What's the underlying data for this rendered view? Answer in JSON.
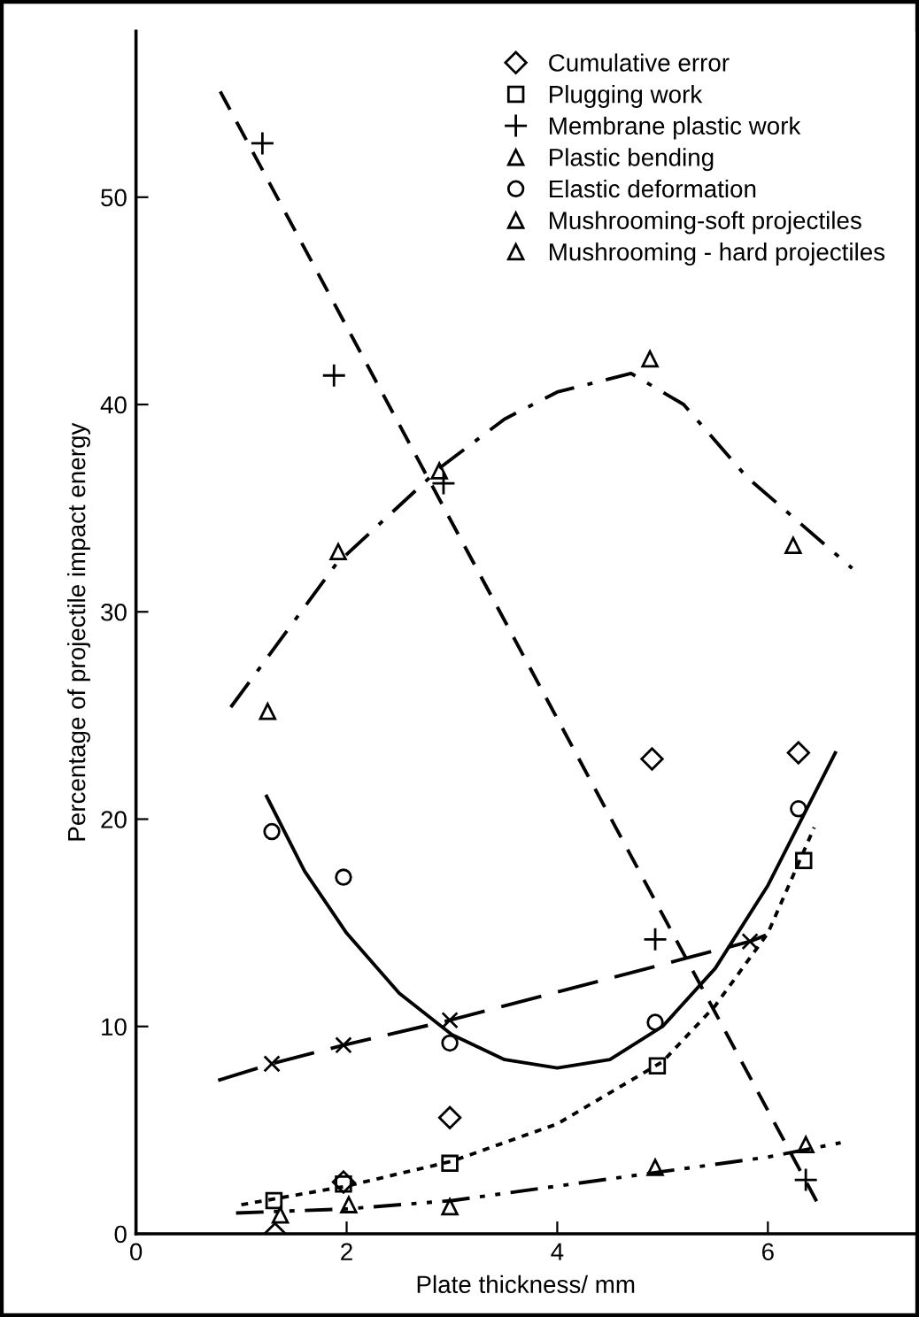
{
  "chart_data": {
    "type": "scatter",
    "xlabel": "Plate thickness/ mm",
    "ylabel": "Percentage of projectile impact energy",
    "xlim": [
      0,
      7.4
    ],
    "ylim": [
      0,
      58
    ],
    "xticks": [
      0,
      2,
      4,
      6
    ],
    "yticks": [
      0,
      10,
      20,
      30,
      40,
      50
    ],
    "grid": false,
    "legend": "top right",
    "series": [
      {
        "name": "Cumulative error",
        "marker": "diamond",
        "color": "#000000",
        "x": [
          1.32,
          1.97,
          2.98,
          4.9,
          6.29
        ],
        "values": [
          0.0,
          2.5,
          5.6,
          22.9,
          23.2
        ]
      },
      {
        "name": "Plugging work",
        "marker": "square",
        "color": "#000000",
        "x": [
          1.31,
          1.97,
          2.98,
          4.95,
          6.34
        ],
        "values": [
          1.6,
          2.4,
          3.4,
          8.1,
          18.0
        ]
      },
      {
        "name": "Membrane plastic work",
        "marker": "cross",
        "color": "#000000",
        "x": [
          1.2,
          1.88,
          2.92,
          4.93,
          6.36
        ],
        "values": [
          52.6,
          41.4,
          36.2,
          14.2,
          2.6
        ]
      },
      {
        "name": "Plastic bending",
        "marker": "triangle",
        "color": "#000000",
        "x": [
          1.25,
          1.92,
          2.88,
          4.88,
          6.24
        ],
        "values": [
          25.2,
          32.9,
          36.8,
          42.2,
          33.2
        ]
      },
      {
        "name": "Elastic deformation",
        "marker": "circle",
        "color": "#000000",
        "x": [
          1.29,
          1.97,
          2.98,
          4.93,
          6.29
        ],
        "values": [
          19.4,
          17.2,
          9.2,
          10.2,
          20.5
        ]
      },
      {
        "name": "Mushrooming-soft projectiles",
        "marker": "triangle",
        "color": "#000000",
        "x": [
          1.37,
          2.02,
          2.98
        ],
        "values": [
          0.9,
          1.4,
          1.3
        ]
      },
      {
        "name": "Mushrooming - hard projectiles",
        "marker": "triangle",
        "color": "#000000",
        "x": [
          4.93,
          6.36
        ],
        "values": [
          3.2,
          4.3
        ]
      },
      {
        "marker": "x",
        "color": "#000000",
        "x": [
          1.29,
          1.97,
          2.98,
          5.83
        ],
        "values": [
          8.2,
          9.1,
          10.3,
          14.1
        ]
      },
      {
        "type": "line",
        "line_style": "dashed",
        "color": "#000000",
        "x": [
          0.8,
          6.47
        ],
        "values": [
          55.1,
          1.5
        ]
      },
      {
        "type": "line",
        "line_style": "dashdot",
        "color": "#000000",
        "x": [
          0.9,
          1.9,
          2.9,
          3.5,
          4.0,
          4.7,
          5.2,
          5.8,
          6.8
        ],
        "values": [
          25.4,
          32.3,
          37.0,
          39.3,
          40.6,
          41.5,
          40.0,
          36.5,
          32.1
        ]
      },
      {
        "type": "line",
        "line_style": "solid",
        "color": "#000000",
        "x": [
          1.24,
          1.6,
          2.0,
          2.5,
          3.0,
          3.5,
          4.0,
          4.5,
          5.0,
          5.5,
          6.0,
          6.3,
          6.64
        ],
        "values": [
          21.1,
          17.5,
          14.5,
          11.6,
          9.6,
          8.4,
          8.0,
          8.4,
          10.0,
          12.8,
          16.8,
          19.8,
          23.2
        ]
      },
      {
        "type": "line",
        "line_style": "dotted",
        "color": "#000000",
        "x": [
          1.0,
          2.0,
          3.0,
          4.0,
          5.0,
          5.5,
          6.0,
          6.44
        ],
        "values": [
          1.4,
          2.3,
          3.5,
          5.3,
          8.3,
          11.0,
          14.5,
          19.6
        ]
      },
      {
        "type": "line",
        "line_style": "dashdotdot",
        "color": "#000000",
        "x": [
          0.95,
          2.0,
          3.0,
          4.0,
          5.0,
          6.0,
          6.7
        ],
        "values": [
          1.0,
          1.2,
          1.6,
          2.3,
          3.0,
          3.7,
          4.4
        ]
      },
      {
        "type": "line",
        "line_style": "longdash",
        "color": "#000000",
        "x": [
          0.78,
          1.29,
          1.97,
          2.98,
          5.83,
          5.98
        ],
        "values": [
          7.4,
          8.2,
          9.1,
          10.3,
          14.1,
          14.4
        ]
      }
    ]
  }
}
